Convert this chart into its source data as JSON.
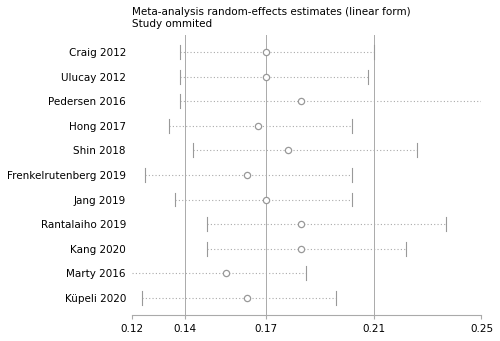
{
  "title_line1": "Meta-analysis random-effects estimates (linear form)",
  "title_line2": "Study ommited",
  "studies": [
    "Craig 2012",
    "Ulucay 2012",
    "Pedersen 2016",
    "Hong 2017",
    "Shin 2018",
    "Frenkelrutenberg 2019",
    "Jang 2019",
    "Rantalaiho 2019",
    "Kang 2020",
    "Marty 2016",
    "Küpeli 2020"
  ],
  "estimates": [
    0.17,
    0.17,
    0.183,
    0.167,
    0.178,
    0.163,
    0.17,
    0.183,
    0.183,
    0.155,
    0.163
  ],
  "ci_low": [
    0.138,
    0.138,
    0.138,
    0.134,
    0.143,
    0.125,
    0.136,
    0.148,
    0.148,
    0.12,
    0.124
  ],
  "ci_high": [
    0.21,
    0.208,
    0.253,
    0.202,
    0.226,
    0.202,
    0.202,
    0.237,
    0.222,
    0.185,
    0.196
  ],
  "ci_low_cap": [
    true,
    true,
    true,
    true,
    true,
    true,
    true,
    true,
    true,
    false,
    true
  ],
  "ci_high_cap": [
    true,
    true,
    true,
    true,
    true,
    true,
    true,
    true,
    true,
    true,
    true
  ],
  "xlim": [
    0.12,
    0.25
  ],
  "xticks": [
    0.12,
    0.14,
    0.17,
    0.21,
    0.25
  ],
  "xtick_labels": [
    "0.12",
    "0.14",
    "0.17",
    "0.21",
    "0.25"
  ],
  "vlines": [
    0.14,
    0.17,
    0.21
  ],
  "dot_color": "white",
  "dot_edgecolor": "#999999",
  "line_color": "#999999",
  "vline_color": "#aaaaaa",
  "ci_line_color": "#aaaaaa",
  "background_color": "#ffffff",
  "title_fontsize": 7.5,
  "label_fontsize": 7.5,
  "tick_fontsize": 7.5
}
